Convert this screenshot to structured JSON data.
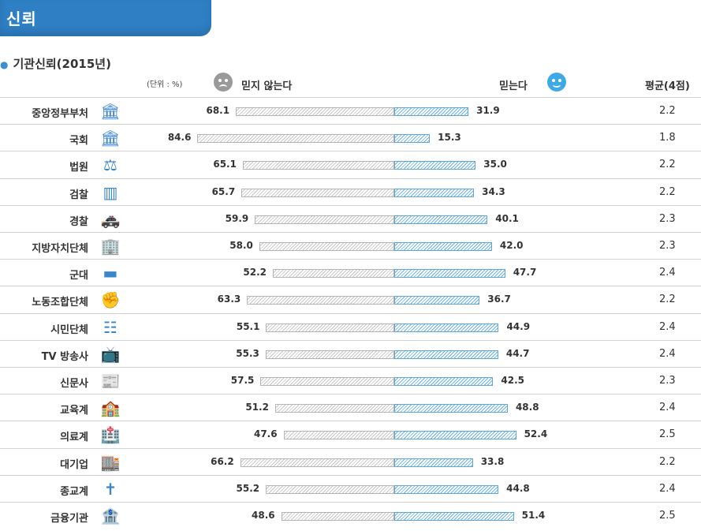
{
  "header": {
    "title": "신뢰"
  },
  "subtitle": "기관신뢰(2015년)",
  "unit_label": "(단위 : %)",
  "legend": {
    "distrust": "믿지 않는다",
    "trust": "믿는다"
  },
  "avg_header": "평균(4점)",
  "colors": {
    "header": "#2f7fc4",
    "distrust_bar": "#c7c7c7",
    "trust_bar": "#6cb3e6"
  },
  "chart_data": {
    "type": "bar",
    "title": "기관신뢰(2015년)",
    "unit": "%",
    "series": [
      {
        "name": "믿지 않는다",
        "values": [
          68.1,
          84.6,
          65.1,
          65.7,
          59.9,
          58.0,
          52.2,
          63.3,
          55.1,
          55.3,
          57.5,
          51.2,
          47.6,
          66.2,
          55.2,
          48.6
        ]
      },
      {
        "name": "믿는다",
        "values": [
          31.9,
          15.3,
          35.0,
          34.3,
          40.1,
          42.0,
          47.7,
          36.7,
          44.9,
          44.7,
          42.5,
          48.8,
          52.4,
          33.8,
          44.8,
          51.4
        ]
      }
    ],
    "categories": [
      "중앙정부부처",
      "국회",
      "법원",
      "검찰",
      "경찰",
      "지방자치단체",
      "군대",
      "노동조합단체",
      "시민단체",
      "TV 방송사",
      "신문사",
      "교육계",
      "의료계",
      "대기업",
      "종교계",
      "금융기관"
    ],
    "averages": [
      "2.2",
      "1.8",
      "2.2",
      "2.2",
      "2.3",
      "2.3",
      "2.4",
      "2.2",
      "2.4",
      "2.4",
      "2.3",
      "2.4",
      "2.5",
      "2.2",
      "2.4",
      "2.5"
    ],
    "icons": [
      "government-building-icon",
      "parliament-icon",
      "gavel-icon",
      "prosecution-icon",
      "police-car-icon",
      "city-hall-icon",
      "tank-icon",
      "labor-union-icon",
      "civic-group-icon",
      "tv-icon",
      "newspaper-icon",
      "school-icon",
      "hospital-icon",
      "corporation-icon",
      "cross-icon",
      "bank-icon"
    ]
  }
}
